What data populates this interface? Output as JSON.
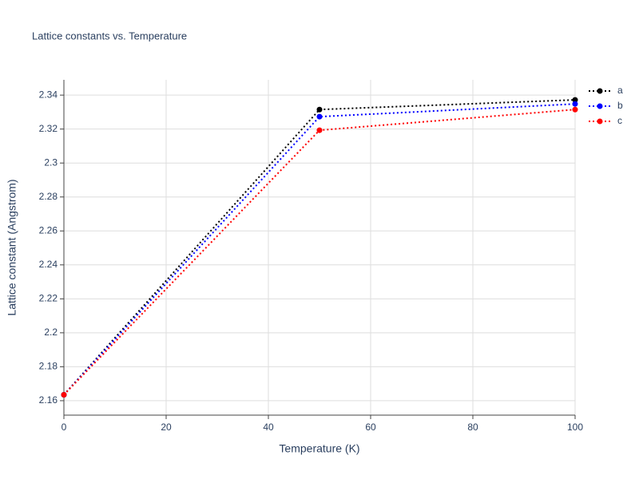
{
  "chart_data": {
    "type": "line",
    "title": "Lattice constants vs. Temperature",
    "x_label": "Temperature (K)",
    "y_label": "Lattice constant (Angstrom)",
    "x": [
      0,
      50,
      100
    ],
    "series": [
      {
        "name": "a",
        "color": "#000000",
        "values": [
          2.1635,
          2.3315,
          2.3372
        ]
      },
      {
        "name": "b",
        "color": "#0000ff",
        "values": [
          2.1635,
          2.3273,
          2.3348
        ]
      },
      {
        "name": "c",
        "color": "#ff0000",
        "values": [
          2.1635,
          2.3193,
          2.3315
        ]
      }
    ],
    "xlim": [
      0,
      100
    ],
    "xticks": [
      0,
      20,
      40,
      60,
      80,
      100
    ],
    "ylim": [
      2.1515,
      2.349
    ],
    "yticks": [
      2.16,
      2.18,
      2.2,
      2.22,
      2.24,
      2.26,
      2.28,
      2.3,
      2.32,
      2.34
    ],
    "grid": true,
    "legend": "top-right"
  }
}
